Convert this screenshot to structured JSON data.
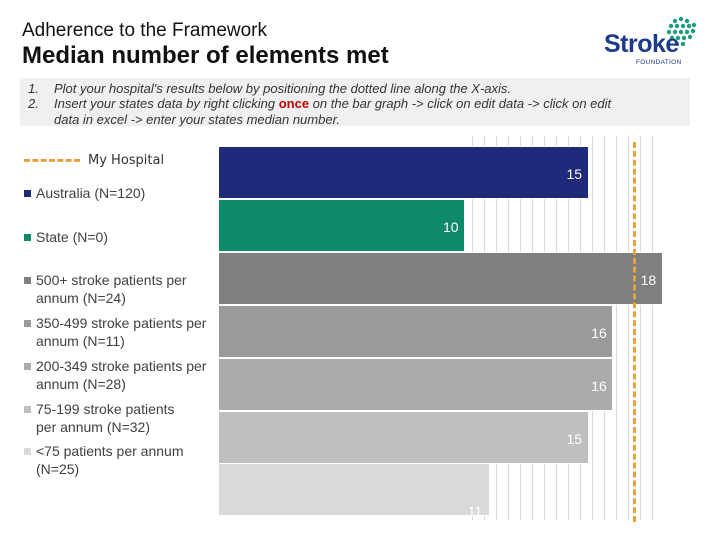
{
  "header": {
    "subtitle": "Adherence to the Framework",
    "title": "Median number of elements met"
  },
  "logo": {
    "word": "Stroke",
    "tagline": "FOUNDATION"
  },
  "instructions": {
    "items": [
      {
        "num": "1.",
        "text": "Plot your hospital's results below by positioning the dotted line along the X-axis."
      },
      {
        "num": "2.",
        "text_before": "Insert your states data by right clicking ",
        "emphasis": "once",
        "text_after": " on the bar graph -> click on edit data -> click on edit"
      }
    ],
    "continuation": "data in excel -> enter your states median number."
  },
  "chart_data": {
    "type": "bar",
    "orientation": "horizontal",
    "x_unit": "elements met",
    "categories": [
      "Australia (N=120)",
      "State (N=0)",
      "500+ stroke patients per annum (N=24)",
      "350-499 stroke patients per annum (N=11)",
      "200-349 stroke patients per annum (N=28)",
      "75-199 stroke patients per annum (N=32)",
      "<75 patients per annum (N=25)"
    ],
    "values": [
      15,
      10,
      18,
      16,
      16,
      15,
      11
    ],
    "colors": [
      "#1f2a7a",
      "#0e8a6a",
      "#7f7f7f",
      "#9a9a9a",
      "#ababab",
      "#bfbfbf",
      "#d9d9d9"
    ],
    "xlim": [
      0,
      18
    ],
    "grid": true,
    "reference_line": {
      "name": "My Hospital",
      "value": 16.8,
      "color": "#e8a33c",
      "style": "dashed"
    },
    "legend": {
      "placement": "left",
      "entries": [
        "Australia (N=120)",
        "State (N=0)",
        "500+ stroke patients per annum (N=24)",
        "350-499 stroke patients per annum (N=11)",
        "200-349 stroke patients per annum (N=28)",
        "75-199 stroke patients per annum (N=32)",
        "<75 patients per annum (N=25)"
      ],
      "marker_colors": [
        "#1f2a7a",
        "#0e8a6a",
        "#7f7f7f",
        "#9a9a9a",
        "#ababab",
        "#bfbfbf",
        "#d9d9d9"
      ],
      "label_colors": [
        "#404040",
        "#404040",
        "#404040",
        "#404040",
        "#404040",
        "#404040",
        "#404040"
      ]
    }
  }
}
